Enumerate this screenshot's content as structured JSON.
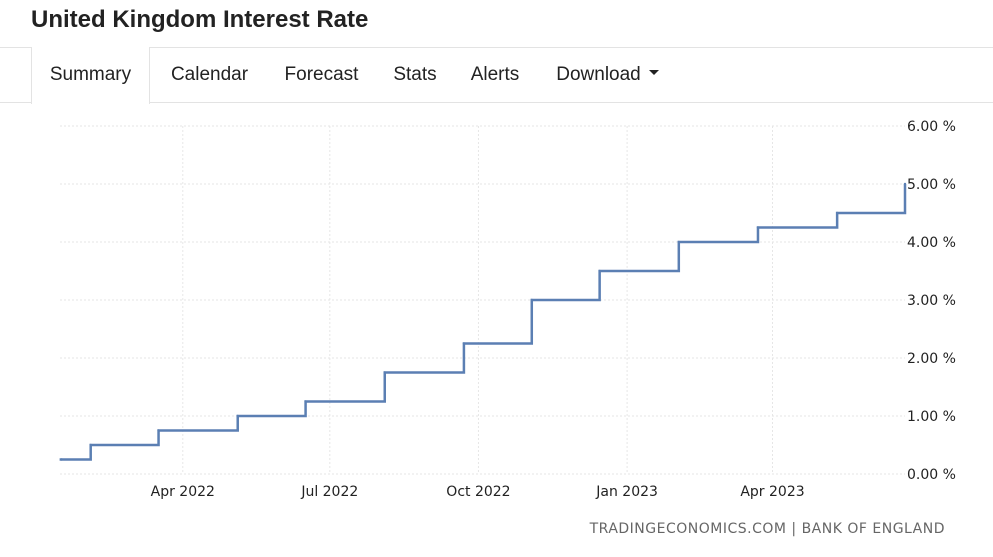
{
  "header": {
    "title": "United Kingdom Interest Rate"
  },
  "tabs": [
    {
      "label": "Summary",
      "active": true
    },
    {
      "label": "Calendar",
      "active": false
    },
    {
      "label": "Forecast",
      "active": false
    },
    {
      "label": "Stats",
      "active": false
    },
    {
      "label": "Alerts",
      "active": false
    },
    {
      "label": "Download",
      "active": false,
      "icon": "caret-down-icon"
    }
  ],
  "source": "TRADINGECONOMICS.COM | BANK OF ENGLAND",
  "colors": {
    "line": "#5b7fb3",
    "grid": "#e6e6e6",
    "text": "#222222"
  },
  "chart_data": {
    "type": "line",
    "step": true,
    "x_axis": "date",
    "xlim": [
      "2022-01-15",
      "2023-06-22"
    ],
    "ylim": [
      0,
      6
    ],
    "y_ticks": [
      0,
      1,
      2,
      3,
      4,
      5,
      6
    ],
    "y_tick_labels": [
      "0.00 %",
      "1.00 %",
      "2.00 %",
      "3.00 %",
      "4.00 %",
      "5.00 %",
      "6.00 %"
    ],
    "x_ticks": [
      "2022-04-01",
      "2022-07-01",
      "2022-10-01",
      "2023-01-01",
      "2023-04-01"
    ],
    "x_tick_labels": [
      "Apr 2022",
      "Jul 2022",
      "Oct 2022",
      "Jan 2023",
      "Apr 2023"
    ],
    "grid": true,
    "y_axis_position": "right",
    "series": [
      {
        "x": [
          "2022-01-16",
          "2022-02-03",
          "2022-03-17",
          "2022-05-05",
          "2022-06-16",
          "2022-08-04",
          "2022-09-22",
          "2022-11-03",
          "2022-12-15",
          "2023-02-02",
          "2023-03-23",
          "2023-05-11",
          "2023-06-22"
        ],
        "values": [
          0.25,
          0.5,
          0.75,
          1.0,
          1.25,
          1.75,
          2.25,
          3.0,
          3.5,
          4.0,
          4.25,
          4.5,
          5.0
        ]
      }
    ]
  }
}
